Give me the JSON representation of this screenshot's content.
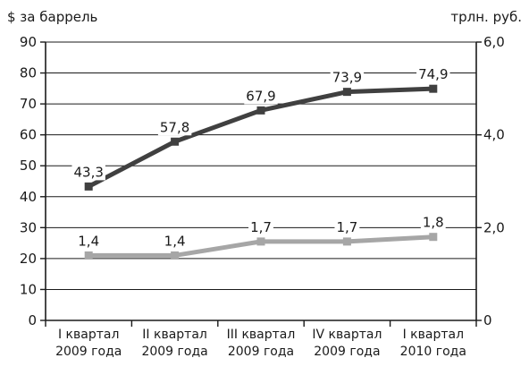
{
  "chart_data": {
    "type": "line",
    "y_label_left": "$ за баррель",
    "y_label_right": "трлн. руб.",
    "categories": [
      [
        "I квартал",
        "2009 года"
      ],
      [
        "II квартал",
        "2009 года"
      ],
      [
        "III квартал",
        "2009 года"
      ],
      [
        "IV квартал",
        "2009 года"
      ],
      [
        "I квартал",
        "2010 года"
      ]
    ],
    "ylim_left": [
      0,
      90
    ],
    "yticks_left": [
      "0",
      "10",
      "20",
      "30",
      "40",
      "50",
      "60",
      "70",
      "80",
      "90"
    ],
    "ylim_right": [
      0,
      6
    ],
    "yticks_right": [
      "0",
      "2,0",
      "4,0",
      "6,0"
    ],
    "grid": true,
    "series": [
      {
        "axis": "left",
        "color": "#404040",
        "values": [
          43.3,
          57.8,
          67.9,
          73.9,
          74.9
        ],
        "labels": [
          "43,3",
          "57,8",
          "67,9",
          "73,9",
          "74,9"
        ]
      },
      {
        "axis": "right",
        "color": "#a6a6a6",
        "values": [
          1.4,
          1.4,
          1.7,
          1.7,
          1.8
        ],
        "labels": [
          "1,4",
          "1,4",
          "1,7",
          "1,7",
          "1,8"
        ]
      }
    ]
  }
}
